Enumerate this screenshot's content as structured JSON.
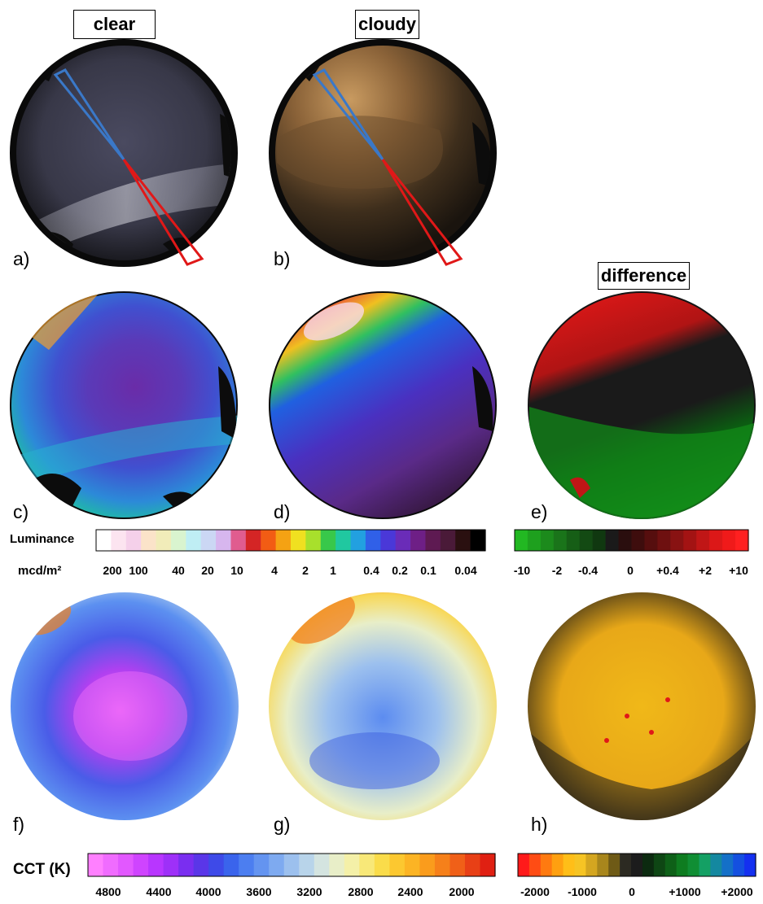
{
  "headers": {
    "clear": "clear",
    "cloudy": "cloudy",
    "difference": "difference"
  },
  "panels": {
    "a": "a)",
    "b": "b)",
    "c": "c)",
    "d": "d)",
    "e": "e)",
    "f": "f)",
    "g": "g)",
    "h": "h)"
  },
  "luminance_bar": {
    "title": "Luminance",
    "unit": "mcd/m²",
    "ticks": [
      "200",
      "100",
      "40",
      "20",
      "10",
      "4",
      "2",
      "1",
      "0.4",
      "0.2",
      "0.1",
      "0.04"
    ],
    "colors": [
      "#ffffff",
      "#fce4f0",
      "#f5d0ea",
      "#fbe3c9",
      "#f1ecb9",
      "#d9f4cf",
      "#bfeef4",
      "#cbd7f4",
      "#d7b6ee",
      "#e05c8f",
      "#d42525",
      "#f25c14",
      "#f5a213",
      "#f0e020",
      "#a8e02c",
      "#38c84a",
      "#20c8a0",
      "#22a0e0",
      "#3060e8",
      "#4a38d8",
      "#6a2cb8",
      "#6e1f86",
      "#5e1a52",
      "#4a1a38",
      "#2a1010",
      "#000000"
    ]
  },
  "difference_bar": {
    "ticks": [
      "-10",
      "-2",
      "-0.4",
      "0",
      "+0.4",
      "+2",
      "+10"
    ],
    "colors": [
      "#22b822",
      "#1ea01e",
      "#1c8a1c",
      "#1a741a",
      "#165e16",
      "#134a13",
      "#103810",
      "#1a1a1a",
      "#2a0e0e",
      "#3e0d0d",
      "#560e0e",
      "#6e1010",
      "#881212",
      "#a31313",
      "#c01616",
      "#dc1818",
      "#f01a1a",
      "#ff2020"
    ]
  },
  "cct_bar": {
    "title": "CCT (K)",
    "ticks": [
      "4800",
      "4400",
      "4000",
      "3600",
      "3200",
      "2800",
      "2400",
      "2000"
    ],
    "colors": [
      "#ff80ff",
      "#f06cff",
      "#e258ff",
      "#cf44ff",
      "#b836ff",
      "#9e30f8",
      "#7a2ef0",
      "#5a36e8",
      "#3e4ae8",
      "#3a64ec",
      "#4c7ef0",
      "#6494f0",
      "#7eaaf0",
      "#9cc0ee",
      "#b8d4ea",
      "#d4e4e0",
      "#e8eec8",
      "#f4f0a8",
      "#f8e878",
      "#fadc4a",
      "#fcc830",
      "#fcb424",
      "#fa9c1c",
      "#f6801a",
      "#f06018",
      "#e84016",
      "#e02012"
    ]
  },
  "cct_diff_bar": {
    "ticks": [
      "-2000",
      "-1000",
      "0",
      "+1000",
      "+2000"
    ],
    "colors": [
      "#ff1a1a",
      "#ff4c14",
      "#ff7a10",
      "#ffa010",
      "#ffbe18",
      "#f6c424",
      "#d4a620",
      "#a8861c",
      "#6e5a16",
      "#2c2a22",
      "#1c1c1c",
      "#0c2a10",
      "#0e4614",
      "#0e6018",
      "#0e7c20",
      "#108e34",
      "#14a064",
      "#1488a0",
      "#1470c8",
      "#1450e0",
      "#1430f0"
    ]
  }
}
